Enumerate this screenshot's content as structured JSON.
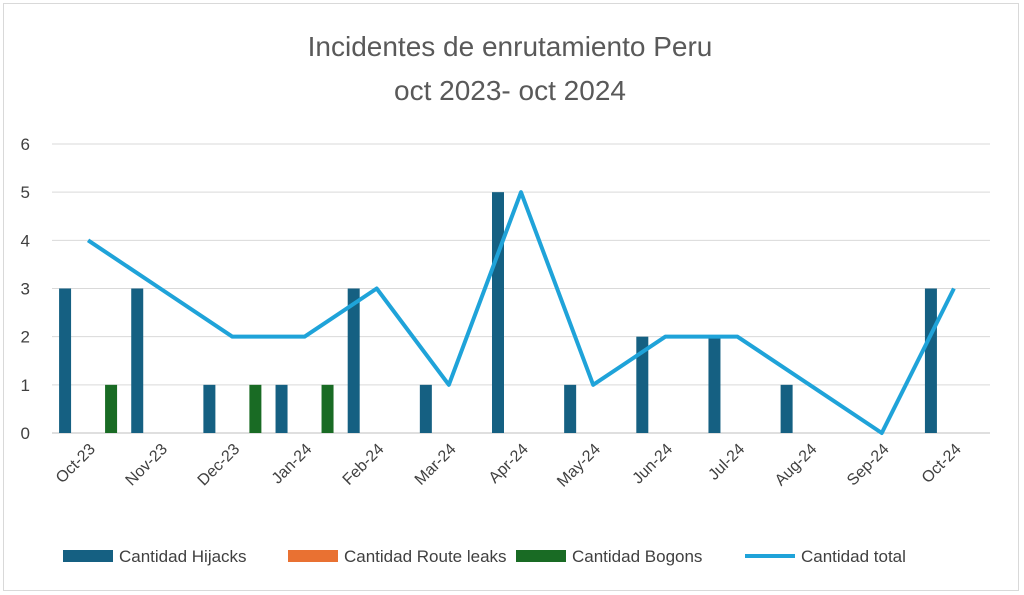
{
  "chart_data": {
    "type": "bar",
    "title_line1": "Incidentes de enrutamiento Peru",
    "title_line2": "oct 2023- oct 2024",
    "categories": [
      "Oct-23",
      "Nov-23",
      "Dec-23",
      "Jan-24",
      "Feb-24",
      "Mar-24",
      "Apr-24",
      "May-24",
      "Jun-24",
      "Jul-24",
      "Aug-24",
      "Sep-24",
      "Oct-24"
    ],
    "series": [
      {
        "name": "Cantidad Hijacks",
        "kind": "bar",
        "color": "#156082",
        "values": [
          3,
          3,
          1,
          1,
          3,
          1,
          5,
          1,
          2,
          2,
          1,
          0,
          3
        ]
      },
      {
        "name": "Cantidad Route leaks",
        "kind": "bar",
        "color": "#e97132",
        "values": [
          0,
          0,
          0,
          0,
          0,
          0,
          0,
          0,
          0,
          0,
          0,
          0,
          0
        ]
      },
      {
        "name": "Cantidad Bogons",
        "kind": "bar",
        "color": "#196b24",
        "values": [
          1,
          0,
          1,
          1,
          0,
          0,
          0,
          0,
          0,
          0,
          0,
          0,
          0
        ]
      },
      {
        "name": "Cantidad total",
        "kind": "line",
        "color": "#1fa3d9",
        "values": [
          4,
          3,
          2,
          2,
          3,
          1,
          5,
          1,
          2,
          2,
          1,
          0,
          3
        ]
      }
    ],
    "yticks": [
      "0",
      "1",
      "2",
      "3",
      "4",
      "5",
      "6"
    ],
    "ylim": [
      0,
      6
    ],
    "grid": true,
    "legend_position": "bottom"
  }
}
